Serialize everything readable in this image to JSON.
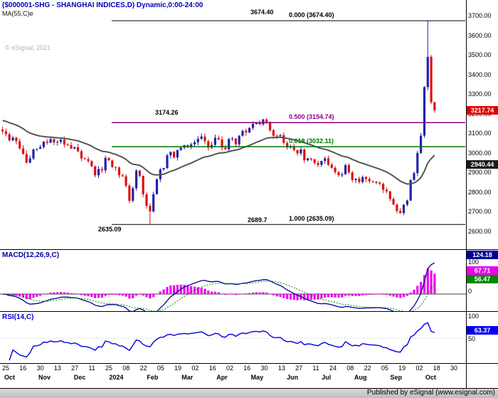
{
  "header": {
    "title": "($000001-SHG - SHANGHAI INDICES,D) Dynamic,0:00-24:00",
    "ma_label": "MA(55,C)e"
  },
  "watermark": "© eSignal, 2021",
  "footer": {
    "published": "Published by eSignal (www.esignal.com)"
  },
  "main_panel": {
    "y_ticks": [
      "3700.00",
      "3600.00",
      "3500.00",
      "3400.00",
      "3300.00",
      "3200.00",
      "3100.00",
      "3000.00",
      "2900.00",
      "2800.00",
      "2700.00",
      "2600.00"
    ],
    "annotations": {
      "spike_high": "3674.40",
      "may_peak": "3174.26",
      "feb_low": "2635.09",
      "sep_low": "2689.7"
    },
    "fib_levels": [
      {
        "ratio": "0.000",
        "label": "0.000 (3674.40)",
        "value": 3674.4,
        "color": "#000000"
      },
      {
        "ratio": "0.500",
        "label": "0.500 (3154.74)",
        "value": 3154.74,
        "color": "#880088"
      },
      {
        "ratio": "0.618",
        "label": "0.618 (3032.11)",
        "value": 3032.11,
        "color": "#007700"
      },
      {
        "ratio": "1.000",
        "label": "1.000 (2635.09)",
        "value": 2635.09,
        "color": "#000000"
      }
    ],
    "badges": [
      {
        "name": "last-price",
        "value": "3217.74",
        "price": 3217.74,
        "bg": "#e00000"
      },
      {
        "name": "ma-value",
        "value": "2940.44",
        "price": 2940.44,
        "bg": "#1a1a1a"
      }
    ]
  },
  "macd_panel": {
    "label": "MACD(12,26,9,C)",
    "ticks": [
      "100",
      "0"
    ],
    "badges": [
      {
        "name": "macd-line-value",
        "value": "124.18",
        "bg": "#000099"
      },
      {
        "name": "macd-hist-value",
        "value": "67.71",
        "bg": "#ee00ee"
      },
      {
        "name": "macd-signal-value",
        "value": "56.47",
        "bg": "#008800"
      }
    ]
  },
  "rsi_panel": {
    "label": "RSI(14,C)",
    "ticks": [
      "100",
      "50"
    ],
    "badges": [
      {
        "name": "rsi-value",
        "value": "63.37",
        "bg": "#0000ee"
      }
    ]
  },
  "x_axis": {
    "days": [
      "25",
      "16",
      "30",
      "13",
      "27",
      "11",
      "25",
      "08",
      "22",
      "05",
      "19",
      "02",
      "16",
      "02",
      "16",
      "30",
      "13",
      "27",
      "11",
      "24",
      "08",
      "22",
      "05",
      "19",
      "02",
      "18",
      "30"
    ],
    "months": [
      "Oct",
      "Nov",
      "Dec",
      "2024",
      "Feb",
      "Mar",
      "Apr",
      "May",
      "Jun",
      "Jul",
      "Aug",
      "Sep",
      "Oct"
    ]
  },
  "chart_data": {
    "type": "candlestick",
    "title": "($000001-SHG - SHANGHAI INDICES,D) Dynamic,0:00-24:00",
    "x_unit": "approx. 2 trading days per sample, late Sep 2023 - Oct 2024",
    "y_range": [
      2600,
      3700
    ],
    "close": [
      3110,
      3096,
      3064,
      3078,
      3060,
      3023,
      2995,
      2950,
      2972,
      3018,
      3021,
      3030,
      3058,
      3052,
      3071,
      3054,
      3057,
      3068,
      3043,
      3040,
      3022,
      3030,
      3009,
      2972,
      2969,
      2958,
      2932,
      2886,
      2918,
      2911,
      2975,
      2962,
      2929,
      2926,
      2886,
      2881,
      2833,
      2756,
      2820,
      2910,
      2883,
      2789,
      2730,
      2702,
      2790,
      2866,
      2916,
      2923,
      2988,
      3005,
      2977,
      3015,
      3027,
      3040,
      3030,
      3044,
      3055,
      3072,
      3084,
      3060,
      3027,
      3041,
      3077,
      3069,
      3027,
      3019,
      3071,
      3074,
      3044,
      3088,
      3113,
      3104,
      3128,
      3148,
      3154,
      3146,
      3171,
      3158,
      3116,
      3088,
      3087,
      3091,
      3051,
      3028,
      3032,
      3015,
      2998,
      3018,
      2963,
      2972,
      2967,
      2949,
      2939,
      2959,
      2972,
      2940,
      2924,
      2902,
      2886,
      2891,
      2938,
      2901,
      2862,
      2869,
      2852,
      2877,
      2867,
      2856,
      2854,
      2848,
      2842,
      2812,
      2804,
      2765,
      2737,
      2704,
      2693,
      2736,
      2757,
      2863,
      2897,
      3000,
      3088,
      3336,
      3489.78,
      3258.86,
      3217.74
    ],
    "key_levels": {
      "fib_high": 3674.4,
      "fib_0500": 3154.74,
      "fib_0618": 3032.11,
      "fib_low": 2635.09,
      "may_peak_high": 3174.26,
      "sep_low": 2689.7,
      "last_price": 3217.74,
      "ma55_last": 2940.44,
      "macd_last": 124.18,
      "macd_hist_last": 67.71,
      "macd_signal_last": 56.47,
      "rsi_last": 63.37
    },
    "ma55_prior_level": 3170,
    "overlays": [
      "MA(55,C)e"
    ],
    "lower_panels": [
      "MACD(12,26,9,C)",
      "RSI(14,C)"
    ],
    "legend_position": "none",
    "grid": false
  },
  "colors": {
    "up_candle": "#2222aa",
    "down_candle": "#dd1111",
    "ma_line": "#555555",
    "macd_line": "#000099",
    "macd_signal": "#008800",
    "macd_hist": "#ee00ee",
    "rsi_line": "#0000dd",
    "title_text": "#0000bb",
    "axis_text": "#000000"
  }
}
